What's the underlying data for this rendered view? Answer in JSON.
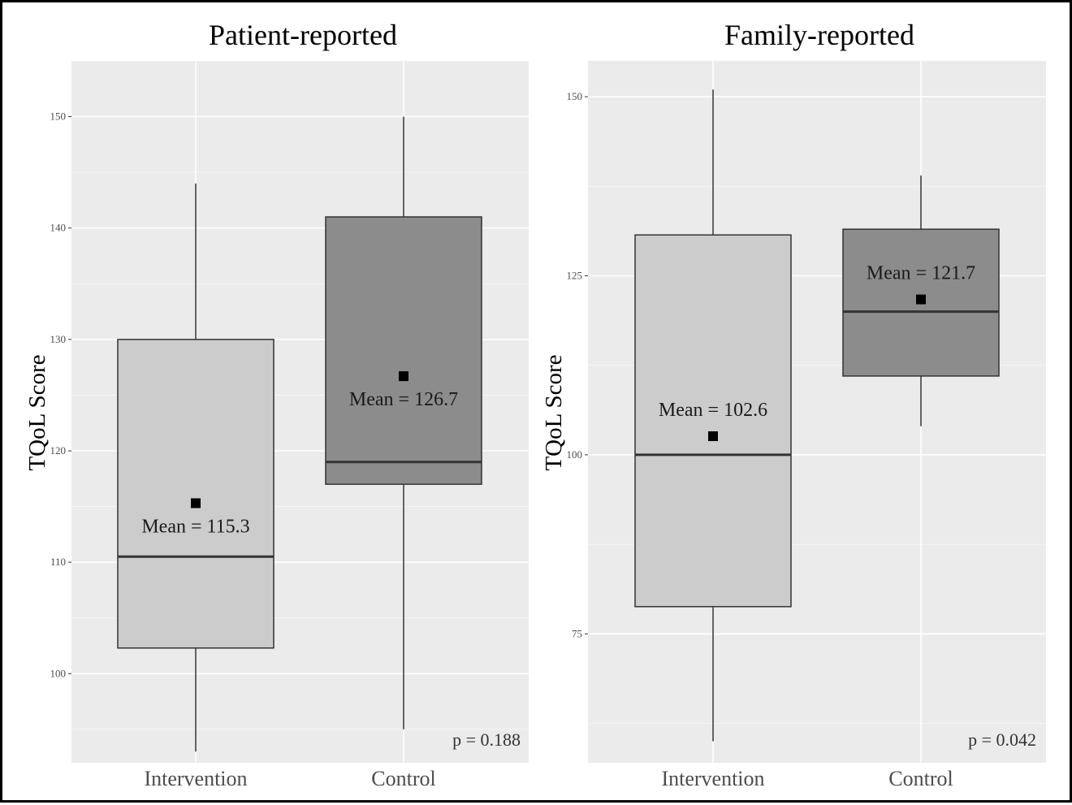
{
  "colors": {
    "panel_background": "#ebebeb",
    "gridline": "#ffffff",
    "intervention_fill": "#cccccc",
    "control_fill": "#8c8c8c",
    "box_stroke": "#333333",
    "mean_marker": "#000000"
  },
  "chart_data": [
    {
      "type": "box",
      "title": "Patient-reported",
      "ylabel": "TQoL Score",
      "xlabel": "",
      "ylim": [
        92,
        155
      ],
      "yticks": [
        100,
        110,
        120,
        130,
        140,
        150
      ],
      "grid": true,
      "legend": "none",
      "categories": [
        "Intervention",
        "Control"
      ],
      "boxes": [
        {
          "category": "Intervention",
          "whisker_low": 93,
          "q1": 102.3,
          "median": 110.5,
          "q3": 130,
          "whisker_high": 144,
          "mean": 115.3,
          "mean_label": "Mean = 115.3",
          "fill": "#cccccc"
        },
        {
          "category": "Control",
          "whisker_low": 95,
          "q1": 117,
          "median": 119,
          "q3": 141,
          "whisker_high": 150,
          "mean": 126.7,
          "mean_label": "Mean = 126.7",
          "fill": "#8c8c8c"
        }
      ],
      "p_value": "p = 0.188"
    },
    {
      "type": "box",
      "title": "Family-reported",
      "ylabel": "TQoL Score",
      "xlabel": "",
      "ylim": [
        57,
        155
      ],
      "yticks": [
        75,
        100,
        125,
        150
      ],
      "grid": true,
      "legend": "none",
      "categories": [
        "Intervention",
        "Control"
      ],
      "boxes": [
        {
          "category": "Intervention",
          "whisker_low": 60,
          "q1": 78.8,
          "median": 100,
          "q3": 130.7,
          "whisker_high": 151,
          "mean": 102.6,
          "mean_label": "Mean = 102.6",
          "fill": "#cccccc"
        },
        {
          "category": "Control",
          "whisker_low": 104,
          "q1": 111,
          "median": 120,
          "q3": 131.5,
          "whisker_high": 139,
          "mean": 121.7,
          "mean_label": "Mean = 121.7",
          "fill": "#8c8c8c"
        }
      ],
      "p_value": "p = 0.042"
    }
  ]
}
